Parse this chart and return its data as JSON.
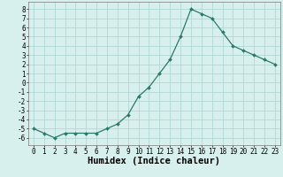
{
  "x": [
    0,
    1,
    2,
    3,
    4,
    5,
    6,
    7,
    8,
    9,
    10,
    11,
    12,
    13,
    14,
    15,
    16,
    17,
    18,
    19,
    20,
    21,
    22,
    23
  ],
  "y": [
    -5,
    -5.5,
    -6,
    -5.5,
    -5.5,
    -5.5,
    -5.5,
    -5,
    -4.5,
    -3.5,
    -1.5,
    -0.5,
    1,
    2.5,
    5,
    8,
    7.5,
    7,
    5.5,
    4,
    3.5,
    3,
    2.5,
    2
  ],
  "line_color": "#2a7a6a",
  "marker": "D",
  "marker_size": 2.0,
  "bg_color": "#d8f0ed",
  "grid_color": "#b0d8d4",
  "xlabel": "Humidex (Indice chaleur)",
  "xlim": [
    -0.5,
    23.5
  ],
  "ylim": [
    -6.8,
    8.8
  ],
  "yticks": [
    -6,
    -5,
    -4,
    -3,
    -2,
    -1,
    0,
    1,
    2,
    3,
    4,
    5,
    6,
    7,
    8
  ],
  "xticks": [
    0,
    1,
    2,
    3,
    4,
    5,
    6,
    7,
    8,
    9,
    10,
    11,
    12,
    13,
    14,
    15,
    16,
    17,
    18,
    19,
    20,
    21,
    22,
    23
  ],
  "xlabel_fontsize": 7.5,
  "tick_fontsize": 5.5,
  "linewidth": 0.9
}
